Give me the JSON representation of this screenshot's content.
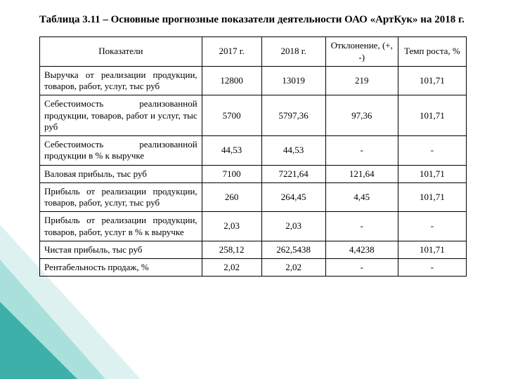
{
  "title": "Таблица 3.11 – Основные прогнозные показатели деятельности ОАО «АртКук» на 2018 г.",
  "decor": {
    "fill1": "#2aa8a0",
    "fill2": "#8fd6cf",
    "fill3": "#c7eae6"
  },
  "table": {
    "type": "table",
    "border_color": "#000000",
    "background_color": "#ffffff",
    "font_family": "Times New Roman",
    "header_fontsize": 13,
    "cell_fontsize": 13,
    "column_widths_pct": [
      38,
      14,
      15,
      17,
      16
    ],
    "columns": [
      "Показатели",
      "2017 г.",
      "2018 г.",
      "Отклонение, (+, -)",
      "Темп роста, %"
    ],
    "rows": [
      {
        "label": "Выручка от реализации продукции, товаров, работ, услуг, тыс руб",
        "v2017": "12800",
        "v2018": "13019",
        "dev": "219",
        "rate": "101,71"
      },
      {
        "label": "Себестоимость реализованной продукции, товаров, работ и услуг, тыс руб",
        "v2017": "5700",
        "v2018": "5797,36",
        "dev": "97,36",
        "rate": "101,71"
      },
      {
        "label": "Себестоимость реализованной продукции в % к выручке",
        "v2017": "44,53",
        "v2018": "44,53",
        "dev": "-",
        "rate": "-"
      },
      {
        "label": "Валовая прибыль, тыс руб",
        "v2017": "7100",
        "v2018": "7221,64",
        "dev": "121,64",
        "rate": "101,71"
      },
      {
        "label": "Прибыль от реализации продукции, товаров, работ, услуг, тыс руб",
        "v2017": "260",
        "v2018": "264,45",
        "dev": "4,45",
        "rate": "101,71"
      },
      {
        "label": "Прибыль от реализации продукции, товаров, работ, услуг в % к выручке",
        "v2017": "2,03",
        "v2018": "2,03",
        "dev": "-",
        "rate": "-"
      },
      {
        "label": "Чистая прибыль, тыс руб",
        "v2017": "258,12",
        "v2018": "262,5438",
        "dev": "4,4238",
        "rate": "101,71"
      },
      {
        "label": "Рентабельность продаж, %",
        "v2017": "2,02",
        "v2018": "2,02",
        "dev": "-",
        "rate": "-"
      }
    ]
  }
}
